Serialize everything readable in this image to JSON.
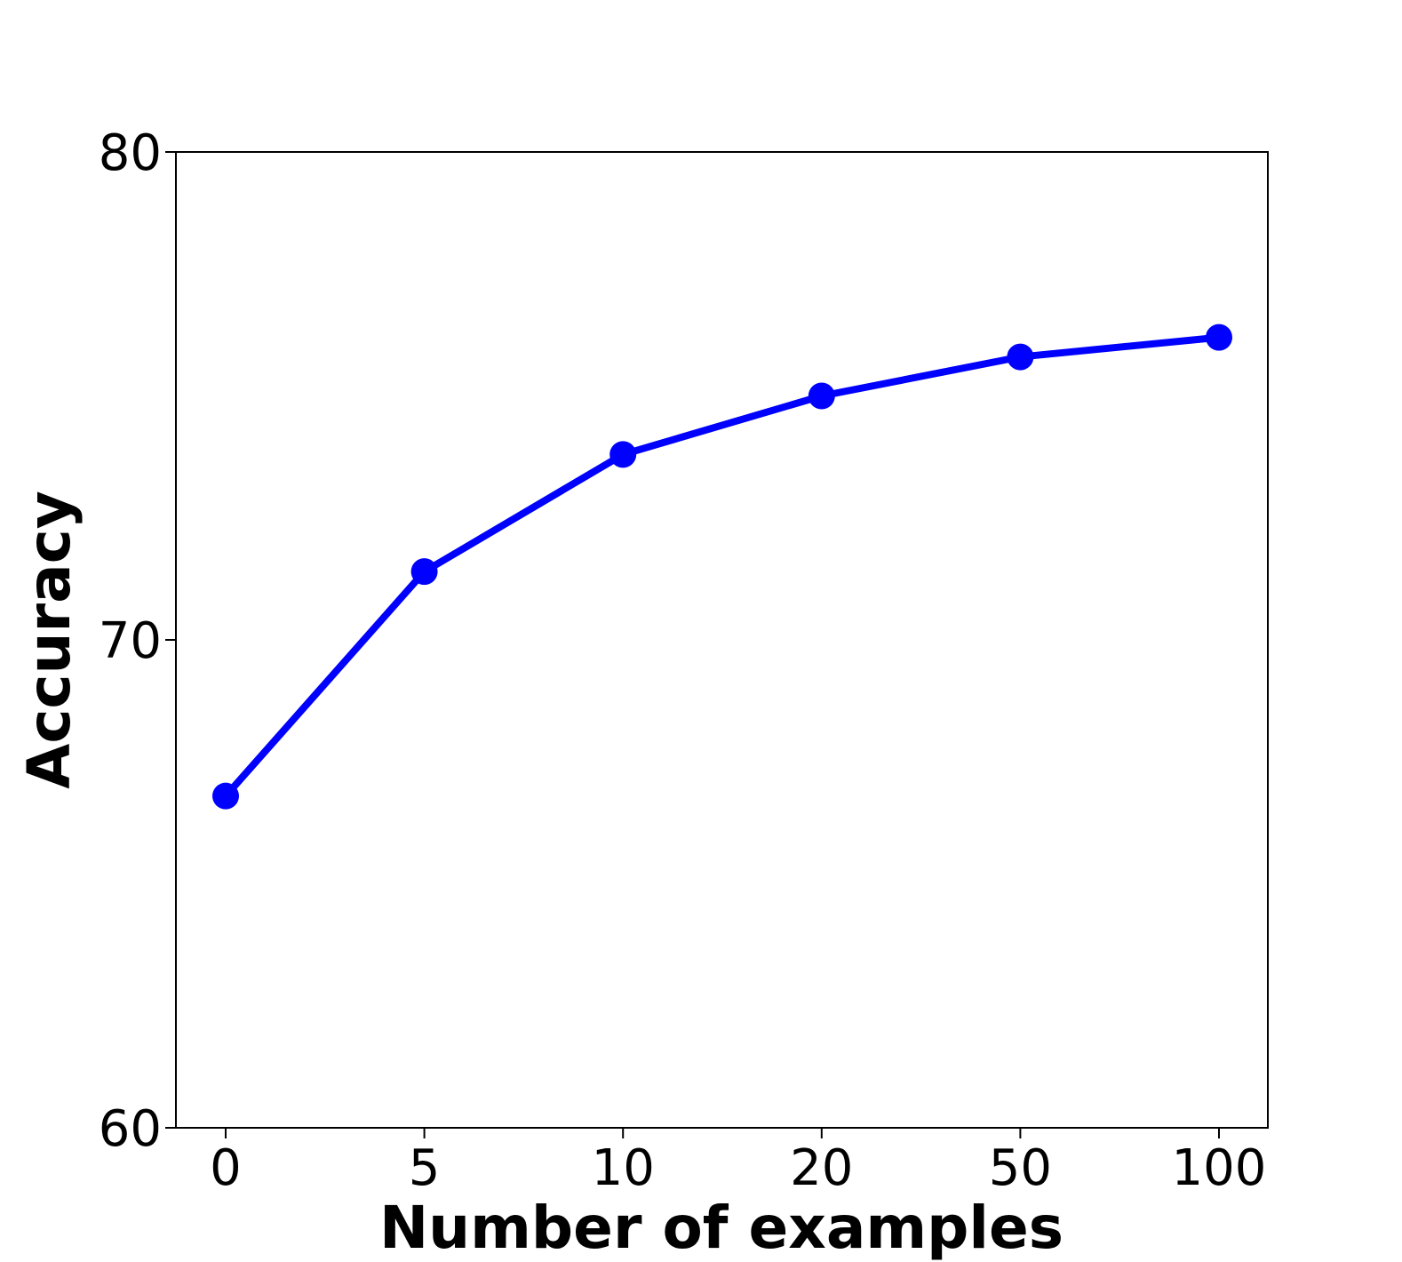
{
  "chart_data": {
    "type": "line",
    "title": "",
    "xlabel": "Number of examples",
    "ylabel": "Accuracy",
    "categories": [
      "0",
      "5",
      "10",
      "20",
      "50",
      "100"
    ],
    "series": [
      {
        "values": [
          66.8,
          71.4,
          73.8,
          75.0,
          75.8,
          76.2
        ],
        "color": "#0000ff"
      }
    ],
    "ylim": [
      60,
      80
    ],
    "yticks": [
      "60",
      "70",
      "80"
    ],
    "grid": false,
    "legend": "none"
  }
}
